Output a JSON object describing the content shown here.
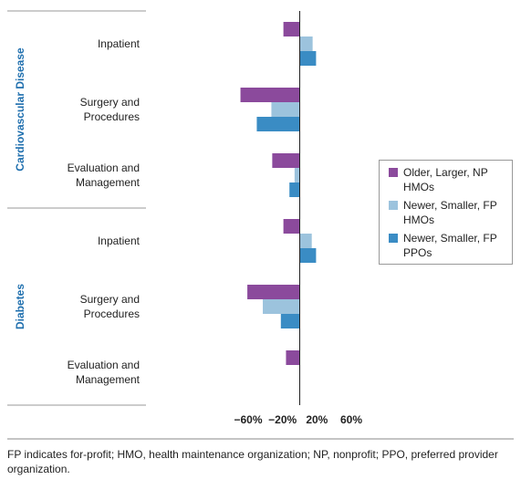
{
  "chart_data": {
    "type": "grouped-hbar",
    "series": [
      {
        "name": "Older, Larger, NP HMOs",
        "color": "#8b4a9c"
      },
      {
        "name": "Newer, Smaller, FP HMOs",
        "color": "#9cc3dd"
      },
      {
        "name": "Newer, Smaller, FP PPOs",
        "color": "#3a8cc4"
      }
    ],
    "groups": [
      {
        "name": "Cardiovascular Disease",
        "categories": [
          "Inpatient",
          "Surgery and Procedures",
          "Evaluation and Management"
        ],
        "values": [
          [
            -19,
            -69,
            -32
          ],
          [
            15,
            -33,
            -6
          ],
          [
            19,
            -50,
            -12
          ]
        ]
      },
      {
        "name": "Diabetes",
        "categories": [
          "Inpatient",
          "Surgery and Procedures",
          "Evaluation and Management"
        ],
        "values": [
          [
            -19,
            -61,
            -16
          ],
          [
            14,
            -43,
            0
          ],
          [
            19,
            -22,
            0
          ]
        ]
      }
    ],
    "xlim": [
      -70,
      65
    ],
    "xticks": [
      {
        "value": -60,
        "label": "−60%"
      },
      {
        "value": -20,
        "label": "−20%"
      },
      {
        "value": 20,
        "label": "20%"
      },
      {
        "value": 60,
        "label": "60%"
      }
    ],
    "legend": "right",
    "footnote": "FP indicates for-profit; HMO, health maintenance organization; NP, nonprofit; PPO, preferred provider organization."
  }
}
